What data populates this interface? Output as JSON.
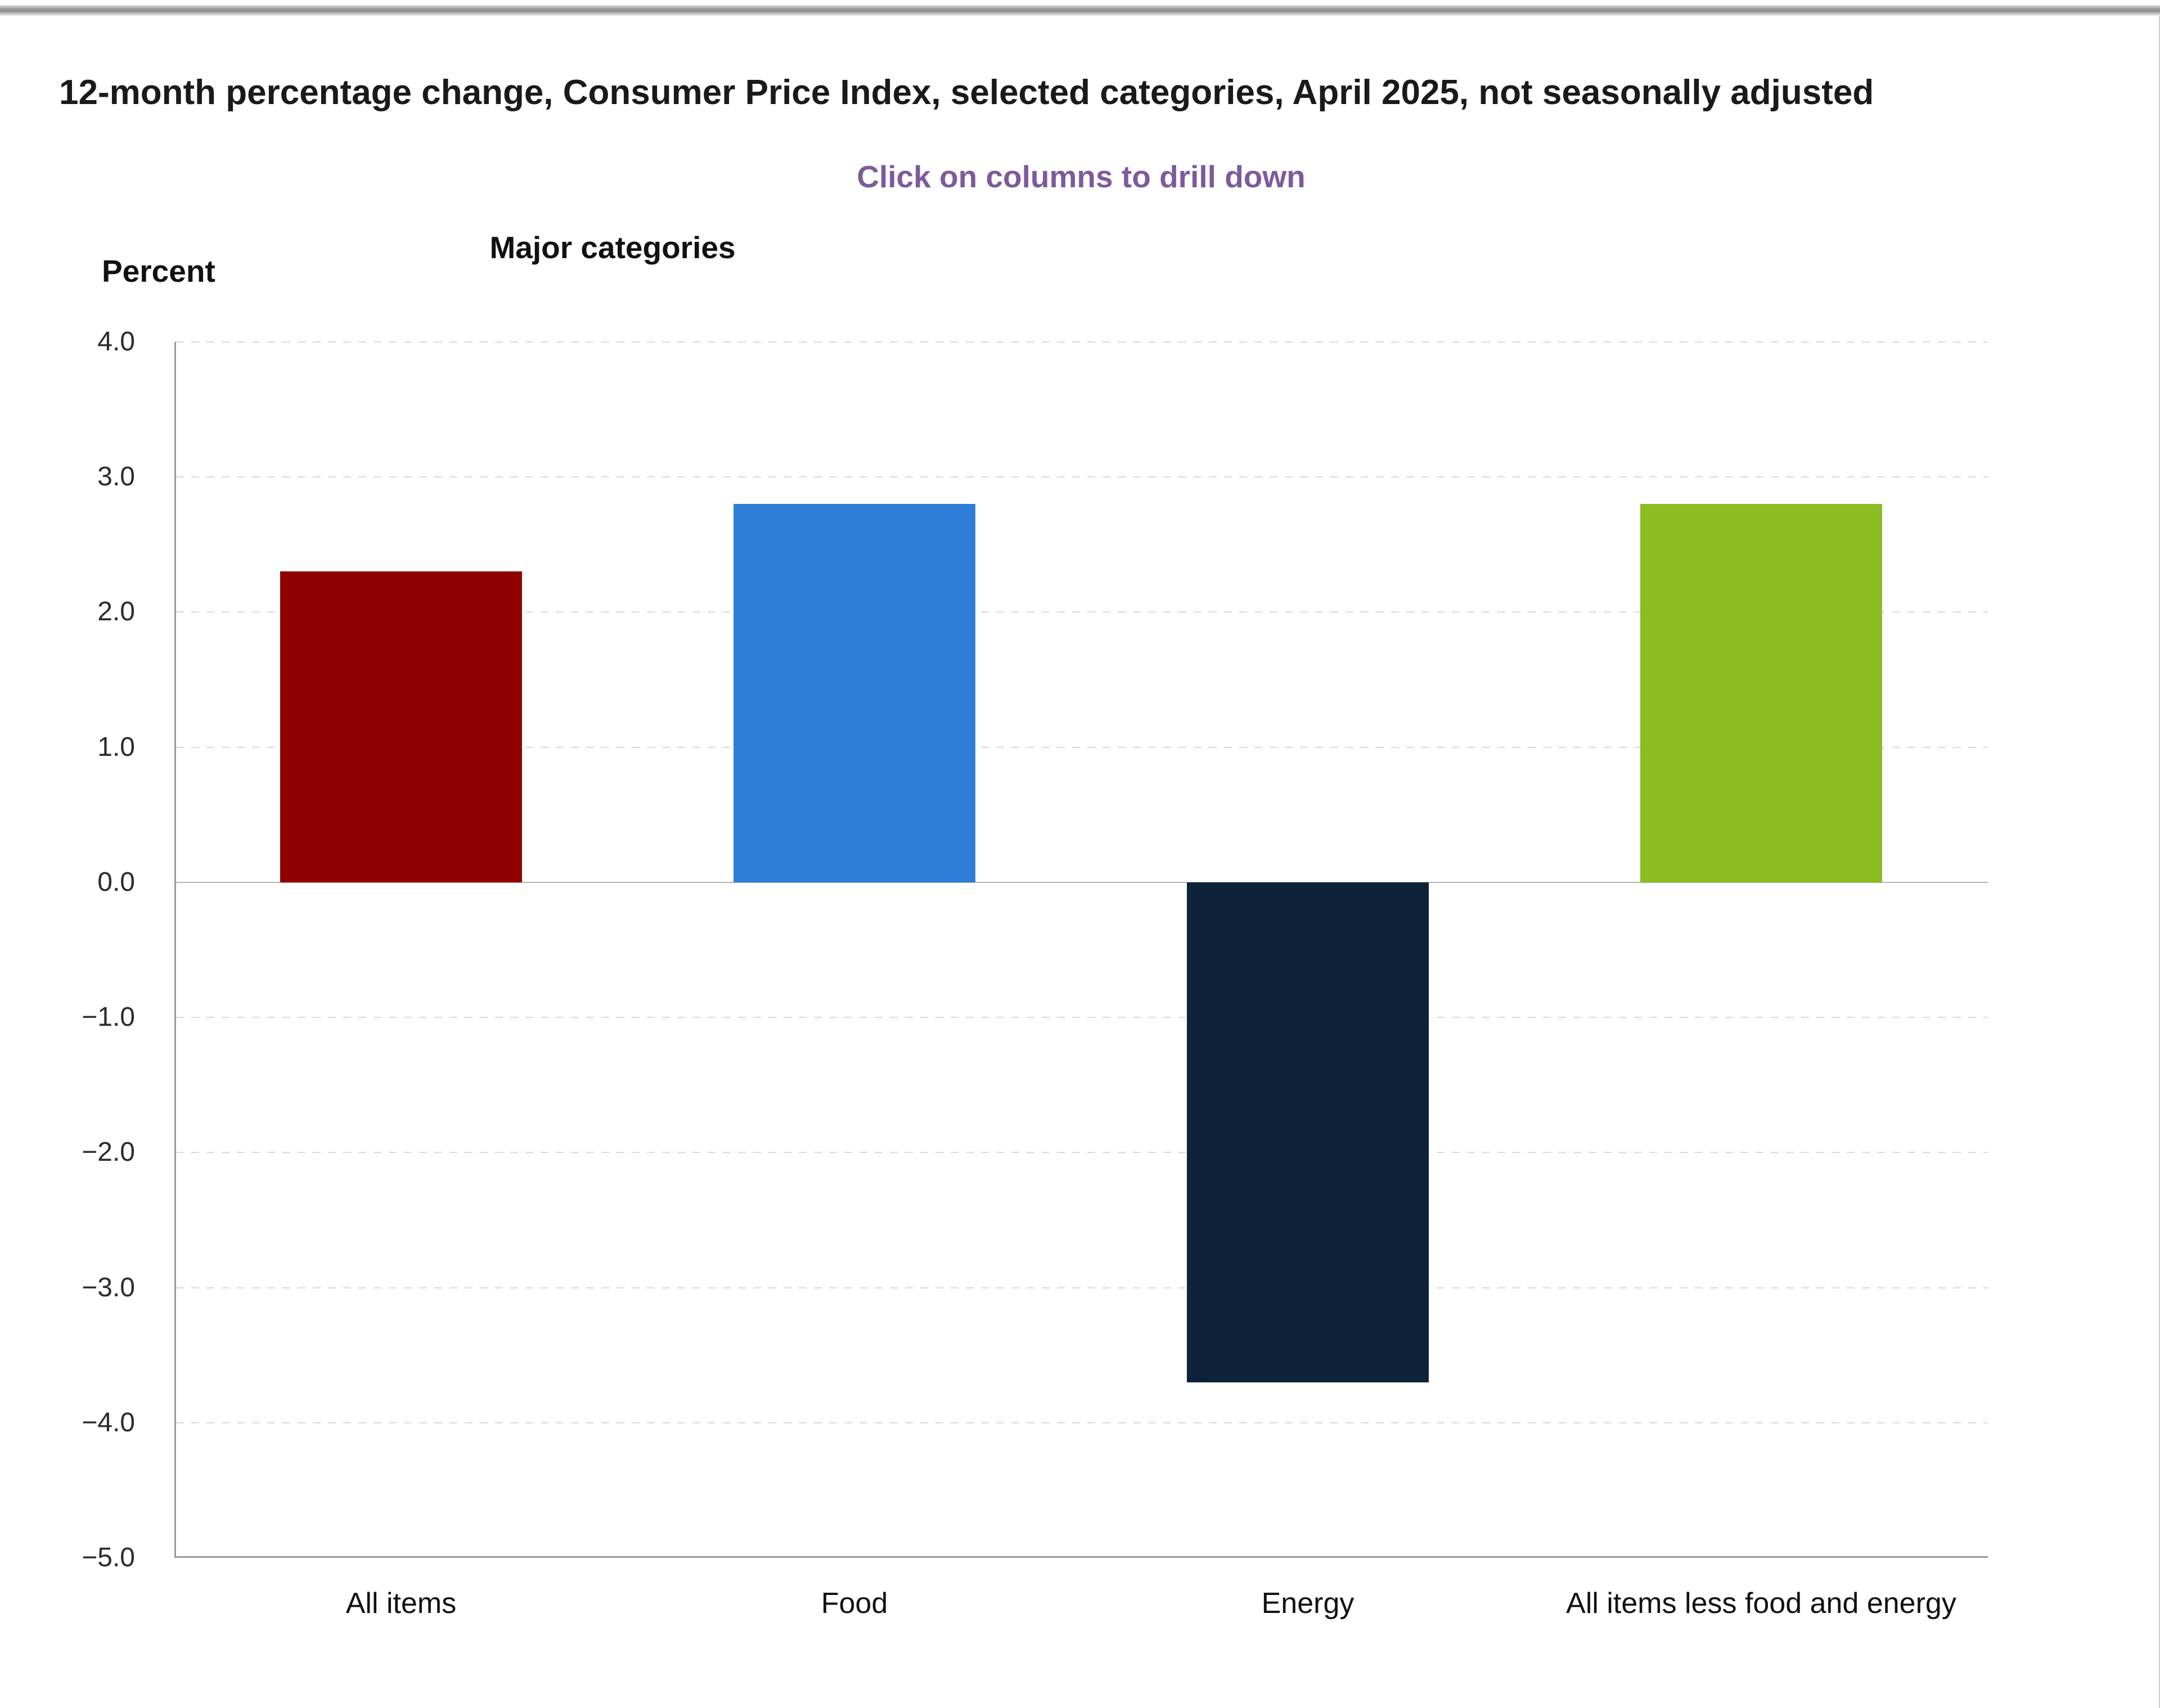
{
  "header": {
    "title": "12-month percentage change, Consumer Price Index, selected categories, April 2025, not seasonally adjusted",
    "subtitle": "Click on columns to drill down",
    "subtitle_color": "#7d5a9b"
  },
  "chart_data": {
    "type": "bar",
    "title": "12-month percentage change, Consumer Price Index, selected categories, April 2025, not seasonally adjusted",
    "subtitle": "Click on columns to drill down",
    "xlabel": "Major categories",
    "ylabel": "Percent",
    "categories": [
      "All items",
      "Food",
      "Energy",
      "All items less food and energy"
    ],
    "values": [
      2.3,
      2.8,
      -3.7,
      2.8
    ],
    "bar_colors": [
      "#910000",
      "#2f7ed8",
      "#0d233a",
      "#8bbc21"
    ],
    "ylim": [
      -5.0,
      4.0
    ],
    "ytick_step": 1.0,
    "ytick_labels": [
      "4.0",
      "3.0",
      "2.0",
      "1.0",
      "0.0",
      "−1.0",
      "−2.0",
      "−3.0",
      "−4.0",
      "−5.0"
    ],
    "grid": "horizontal-dashed",
    "zero_line": "solid",
    "legend": "none",
    "interaction_hint": "columns are clickable to drill down"
  }
}
